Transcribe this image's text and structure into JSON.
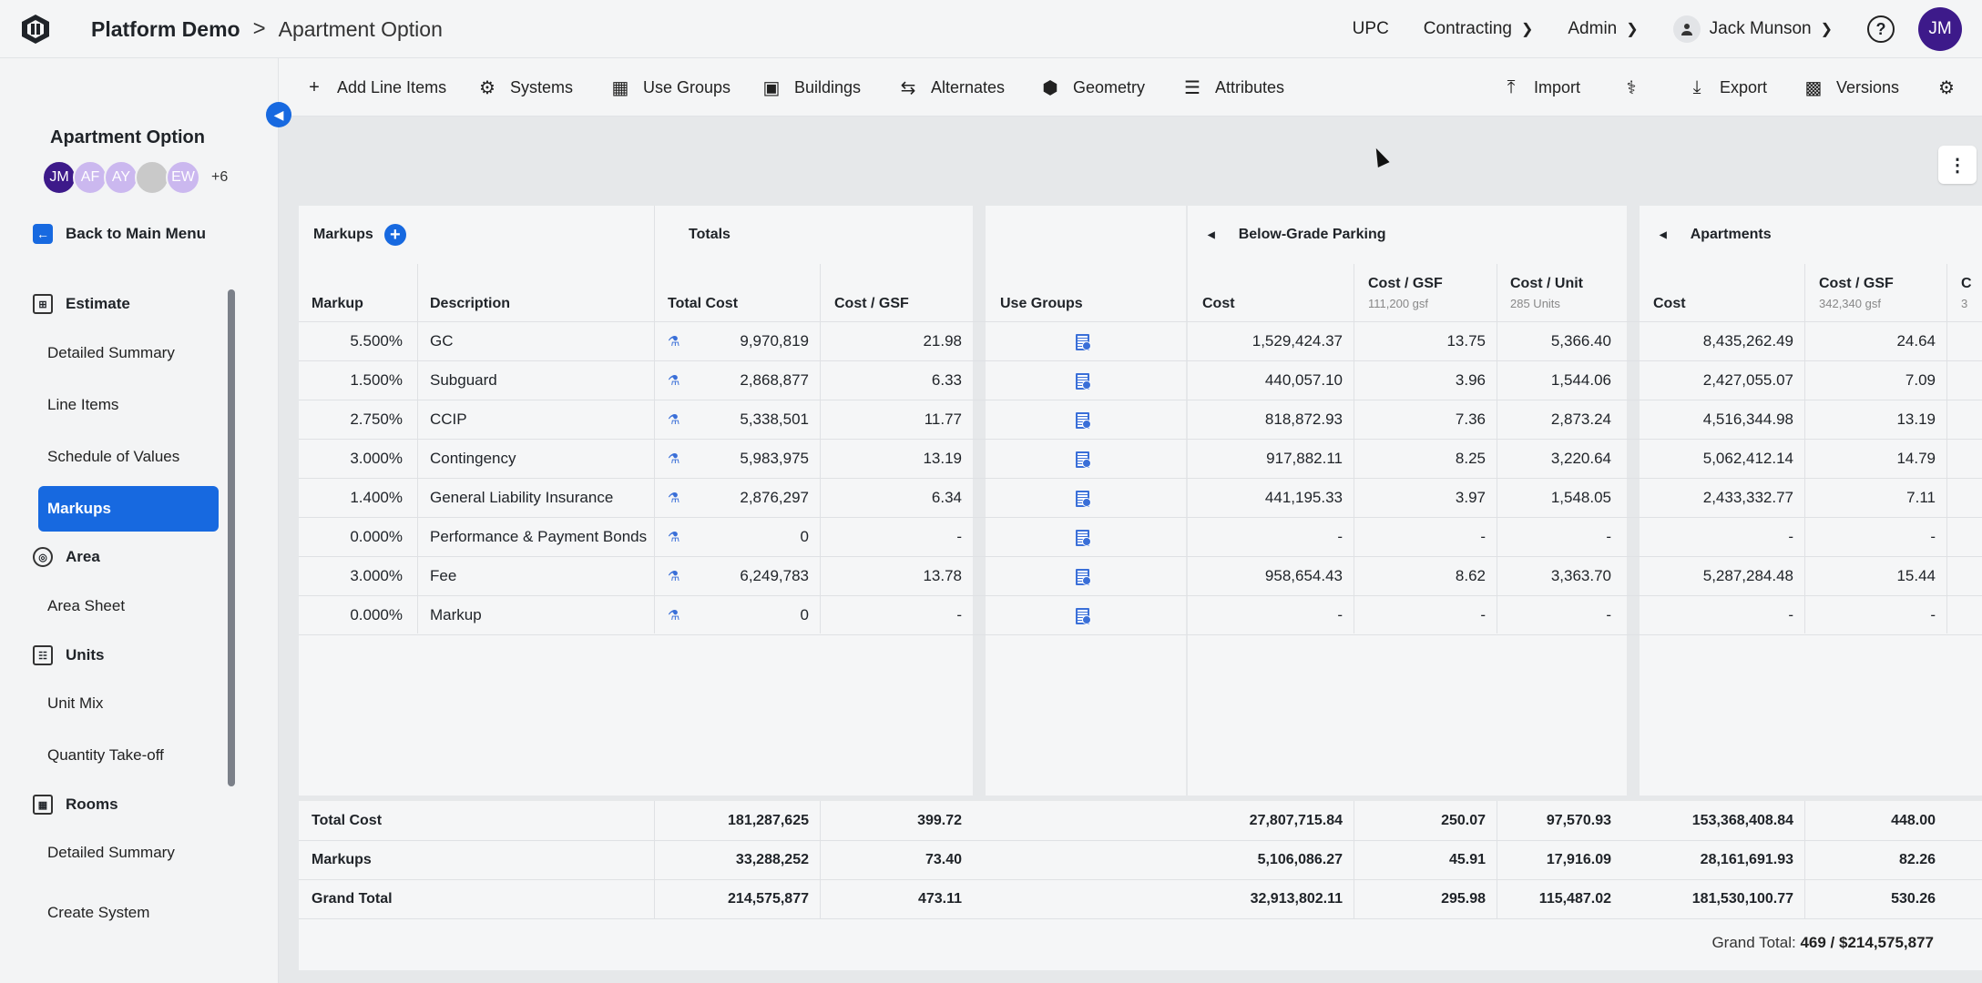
{
  "header": {
    "breadcrumb_root": "Platform Demo",
    "breadcrumb_sep": ">",
    "breadcrumb_current": "Apartment Option",
    "company": "UPC",
    "contracting": "Contracting",
    "admin": "Admin",
    "user_name": "Jack Munson",
    "help": "?",
    "avatar_initials": "JM"
  },
  "toolbar": {
    "add_line_items": "Add Line Items",
    "systems": "Systems",
    "use_groups": "Use Groups",
    "buildings": "Buildings",
    "alternates": "Alternates",
    "geometry": "Geometry",
    "attributes": "Attributes",
    "import": "Import",
    "export": "Export",
    "versions": "Versions"
  },
  "sidebar": {
    "project_title": "Apartment Option",
    "avatars": [
      {
        "initials": "JM",
        "color": "#3d1a8a"
      },
      {
        "initials": "AF",
        "color": "#cbb8ef"
      },
      {
        "initials": "AY",
        "color": "#cbb8ef"
      },
      {
        "initials": "",
        "color": "#c9c9c9"
      },
      {
        "initials": "EW",
        "color": "#cbb8ef"
      }
    ],
    "avatars_more": "+6",
    "back": "Back to Main Menu",
    "sections": {
      "estimate": "Estimate",
      "area": "Area",
      "units": "Units",
      "rooms": "Rooms"
    },
    "items": {
      "detailed_summary": "Detailed Summary",
      "line_items": "Line Items",
      "schedule_of_values": "Schedule of Values",
      "markups": "Markups",
      "area_sheet": "Area Sheet",
      "unit_mix": "Unit Mix",
      "quantity_takeoff": "Quantity Take-off",
      "rooms_detailed_summary": "Detailed Summary",
      "create_system": "Create System"
    }
  },
  "table": {
    "groups": {
      "markups": "Markups",
      "totals": "Totals",
      "below_grade": "Below-Grade Parking",
      "apartments": "Apartments"
    },
    "columns": {
      "markup": "Markup",
      "description": "Description",
      "total_cost": "Total Cost",
      "cost_gsf": "Cost / GSF",
      "use_groups": "Use Groups",
      "cost": "Cost",
      "bgp_cost_gsf": "Cost / GSF",
      "bgp_gsf_sub": "111,200 gsf",
      "bgp_cost_unit": "Cost / Unit",
      "bgp_unit_sub": "285 Units",
      "apt_cost": "Cost",
      "apt_cost_gsf": "Cost / GSF",
      "apt_gsf_sub": "342,340 gsf",
      "apt_cut": "C",
      "apt_cut_sub": "3"
    },
    "rows": [
      {
        "markup": "5.500%",
        "description": "GC",
        "total": "9,970,819",
        "gsf": "21.98",
        "bgp_cost": "1,529,424.37",
        "bgp_gsf": "13.75",
        "bgp_unit": "5,366.40",
        "apt_cost": "8,435,262.49",
        "apt_gsf": "24.64"
      },
      {
        "markup": "1.500%",
        "description": "Subguard",
        "total": "2,868,877",
        "gsf": "6.33",
        "bgp_cost": "440,057.10",
        "bgp_gsf": "3.96",
        "bgp_unit": "1,544.06",
        "apt_cost": "2,427,055.07",
        "apt_gsf": "7.09"
      },
      {
        "markup": "2.750%",
        "description": "CCIP",
        "total": "5,338,501",
        "gsf": "11.77",
        "bgp_cost": "818,872.93",
        "bgp_gsf": "7.36",
        "bgp_unit": "2,873.24",
        "apt_cost": "4,516,344.98",
        "apt_gsf": "13.19"
      },
      {
        "markup": "3.000%",
        "description": "Contingency",
        "total": "5,983,975",
        "gsf": "13.19",
        "bgp_cost": "917,882.11",
        "bgp_gsf": "8.25",
        "bgp_unit": "3,220.64",
        "apt_cost": "5,062,412.14",
        "apt_gsf": "14.79"
      },
      {
        "markup": "1.400%",
        "description": "General Liability Insurance",
        "total": "2,876,297",
        "gsf": "6.34",
        "bgp_cost": "441,195.33",
        "bgp_gsf": "3.97",
        "bgp_unit": "1,548.05",
        "apt_cost": "2,433,332.77",
        "apt_gsf": "7.11"
      },
      {
        "markup": "0.000%",
        "description": "Performance & Payment Bonds",
        "total": "0",
        "gsf": "-",
        "bgp_cost": "-",
        "bgp_gsf": "-",
        "bgp_unit": "-",
        "apt_cost": "-",
        "apt_gsf": "-"
      },
      {
        "markup": "3.000%",
        "description": "Fee",
        "total": "6,249,783",
        "gsf": "13.78",
        "bgp_cost": "958,654.43",
        "bgp_gsf": "8.62",
        "bgp_unit": "3,363.70",
        "apt_cost": "5,287,284.48",
        "apt_gsf": "15.44"
      },
      {
        "markup": "0.000%",
        "description": "Markup",
        "total": "0",
        "gsf": "-",
        "bgp_cost": "-",
        "bgp_gsf": "-",
        "bgp_unit": "-",
        "apt_cost": "-",
        "apt_gsf": "-"
      }
    ],
    "footer": [
      {
        "label": "Total Cost",
        "total": "181,287,625",
        "gsf": "399.72",
        "bgp_cost": "27,807,715.84",
        "bgp_gsf": "250.07",
        "bgp_unit": "97,570.93",
        "apt_cost": "153,368,408.84",
        "apt_gsf": "448.00"
      },
      {
        "label": "Markups",
        "total": "33,288,252",
        "gsf": "73.40",
        "bgp_cost": "5,106,086.27",
        "bgp_gsf": "45.91",
        "bgp_unit": "17,916.09",
        "apt_cost": "28,161,691.93",
        "apt_gsf": "82.26"
      },
      {
        "label": "Grand Total",
        "total": "214,575,877",
        "gsf": "473.11",
        "bgp_cost": "32,913,802.11",
        "bgp_gsf": "295.98",
        "bgp_unit": "115,487.02",
        "apt_cost": "181,530,100.77",
        "apt_gsf": "530.26"
      }
    ],
    "grand_total_label": "Grand Total:",
    "grand_total_value": "469 / $214,575,877"
  }
}
